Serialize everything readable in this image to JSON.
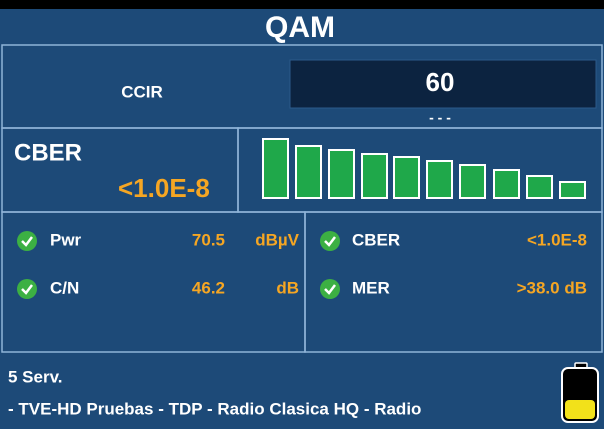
{
  "header": {
    "title": "QAM"
  },
  "channel": {
    "label": "CCIR",
    "value": "60",
    "sub": "- - -"
  },
  "cber_panel": {
    "label": "CBER",
    "value": "<1.0E-8"
  },
  "measurements": {
    "left": [
      {
        "label": "Pwr",
        "value": "70.5",
        "unit": "dBµV"
      },
      {
        "label": "C/N",
        "value": "46.2",
        "unit": "dB"
      }
    ],
    "right": [
      {
        "label": "CBER",
        "value": "<1.0E-8"
      },
      {
        "label": "MER",
        "value": ">38.0 dB"
      }
    ]
  },
  "footer": {
    "services": "5 Serv.",
    "list": "- TVE-HD Pruebas - TDP - Radio Clasica HQ - Radio"
  }
}
